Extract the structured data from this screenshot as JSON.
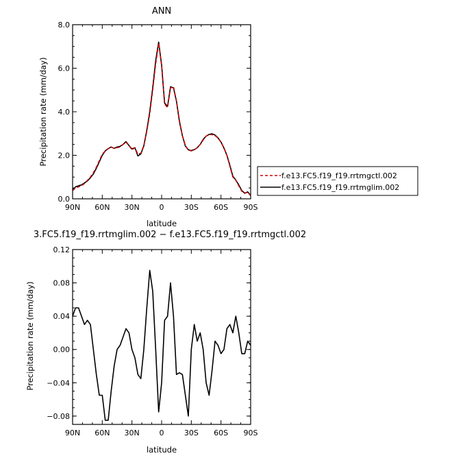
{
  "chart_data": [
    {
      "type": "line",
      "title": "ANN",
      "xlabel": "latitude",
      "ylabel": "Precipitation rate (mm/day)",
      "xlim": [
        90,
        -90
      ],
      "ylim": [
        0,
        8
      ],
      "xticks": [
        90,
        60,
        30,
        0,
        -30,
        -60,
        -90
      ],
      "xtick_labels": [
        "90N",
        "60N",
        "30N",
        "0",
        "30S",
        "60S",
        "90S"
      ],
      "yticks": [
        0,
        2,
        4,
        6,
        8
      ],
      "ytick_labels": [
        "0.0",
        "2.0",
        "4.0",
        "6.0",
        "8.0"
      ],
      "legend_position": "right",
      "x": [
        90,
        87,
        84,
        81,
        78,
        75,
        72,
        69,
        66,
        63,
        60,
        57,
        54,
        51,
        48,
        45,
        42,
        39,
        36,
        33,
        30,
        27,
        24,
        21,
        18,
        15,
        12,
        9,
        6,
        3,
        0,
        -3,
        -6,
        -9,
        -12,
        -15,
        -18,
        -21,
        -24,
        -27,
        -30,
        -33,
        -36,
        -39,
        -42,
        -45,
        -48,
        -51,
        -54,
        -57,
        -60,
        -63,
        -66,
        -69,
        -72,
        -75,
        -78,
        -81,
        -84,
        -87,
        -90
      ],
      "series": [
        {
          "name": "f.e13.FC5.f19_f19.rrtmgctl.002",
          "color": "#cc0000",
          "dash": true,
          "values": [
            0.38,
            0.5,
            0.55,
            0.6,
            0.7,
            0.85,
            1.0,
            1.2,
            1.45,
            1.75,
            2.05,
            2.2,
            2.3,
            2.38,
            2.32,
            2.35,
            2.38,
            2.5,
            2.6,
            2.45,
            2.25,
            2.35,
            2.05,
            2.1,
            2.45,
            3.1,
            3.9,
            5.0,
            6.2,
            7.15,
            6.1,
            4.35,
            4.2,
            5.1,
            5.15,
            4.5,
            3.6,
            2.9,
            2.45,
            2.25,
            2.2,
            2.25,
            2.35,
            2.5,
            2.7,
            2.88,
            2.95,
            2.95,
            2.9,
            2.8,
            2.6,
            2.35,
            2.0,
            1.5,
            1.0,
            0.85,
            0.6,
            0.35,
            0.25,
            0.3,
            0.15
          ]
        },
        {
          "name": "f.e13.FC5.f19_f19.rrtmglim.002",
          "color": "#000000",
          "dash": false,
          "values": [
            0.42,
            0.55,
            0.6,
            0.64,
            0.73,
            0.82,
            0.97,
            1.14,
            1.4,
            1.7,
            2.0,
            2.2,
            2.31,
            2.38,
            2.32,
            2.38,
            2.41,
            2.5,
            2.63,
            2.45,
            2.29,
            2.35,
            1.97,
            2.06,
            2.43,
            3.15,
            4.0,
            5.1,
            6.35,
            7.2,
            6.15,
            4.4,
            4.25,
            5.15,
            5.1,
            4.48,
            3.55,
            2.9,
            2.42,
            2.25,
            2.22,
            2.26,
            2.35,
            2.5,
            2.73,
            2.88,
            2.96,
            2.99,
            2.93,
            2.8,
            2.61,
            2.33,
            2.0,
            1.54,
            1.04,
            0.86,
            0.64,
            0.38,
            0.26,
            0.32,
            0.16
          ]
        }
      ]
    },
    {
      "type": "line",
      "title": "3.FC5.f19_f19.rrtmglim.002 − f.e13.FC5.f19_f19.rrtmgctl.002",
      "xlabel": "latitude",
      "ylabel": "Precipitation rate (mm/day)",
      "xlim": [
        90,
        -90
      ],
      "ylim": [
        -0.09,
        0.12
      ],
      "xticks": [
        90,
        60,
        30,
        0,
        -30,
        -60,
        -90
      ],
      "xtick_labels": [
        "90N",
        "60N",
        "30N",
        "0",
        "30S",
        "60S",
        "90S"
      ],
      "yticks": [
        -0.08,
        -0.04,
        0.0,
        0.04,
        0.08,
        0.12
      ],
      "ytick_labels": [
        "−0.08",
        "−0.04",
        "0.00",
        "0.04",
        "0.08",
        "0.12"
      ],
      "x": [
        90,
        87,
        84,
        81,
        78,
        75,
        72,
        69,
        66,
        63,
        60,
        57,
        54,
        51,
        48,
        45,
        42,
        39,
        36,
        33,
        30,
        27,
        24,
        21,
        18,
        15,
        12,
        9,
        6,
        3,
        0,
        -3,
        -6,
        -9,
        -12,
        -15,
        -18,
        -21,
        -24,
        -27,
        -30,
        -33,
        -36,
        -39,
        -42,
        -45,
        -48,
        -51,
        -54,
        -57,
        -60,
        -63,
        -66,
        -69,
        -72,
        -75,
        -78,
        -81,
        -84,
        -87,
        -90
      ],
      "series": [
        {
          "name": "",
          "color": "#000000",
          "dash": false,
          "values": [
            0.04,
            0.05,
            0.05,
            0.04,
            0.03,
            0.035,
            0.03,
            0.0,
            -0.03,
            -0.055,
            -0.055,
            -0.085,
            -0.085,
            -0.05,
            -0.02,
            0.0,
            0.005,
            0.015,
            0.025,
            0.02,
            0.0,
            -0.01,
            -0.03,
            -0.035,
            0.0,
            0.05,
            0.095,
            0.07,
            0.0,
            -0.075,
            -0.04,
            0.035,
            0.04,
            0.08,
            0.04,
            -0.03,
            -0.028,
            -0.03,
            -0.055,
            -0.08,
            0.0,
            0.03,
            0.01,
            0.02,
            0.0,
            -0.04,
            -0.055,
            -0.025,
            0.01,
            0.005,
            -0.005,
            0.0,
            0.025,
            0.03,
            0.02,
            0.04,
            0.02,
            -0.005,
            -0.005,
            0.01,
            0.005
          ]
        }
      ]
    }
  ]
}
